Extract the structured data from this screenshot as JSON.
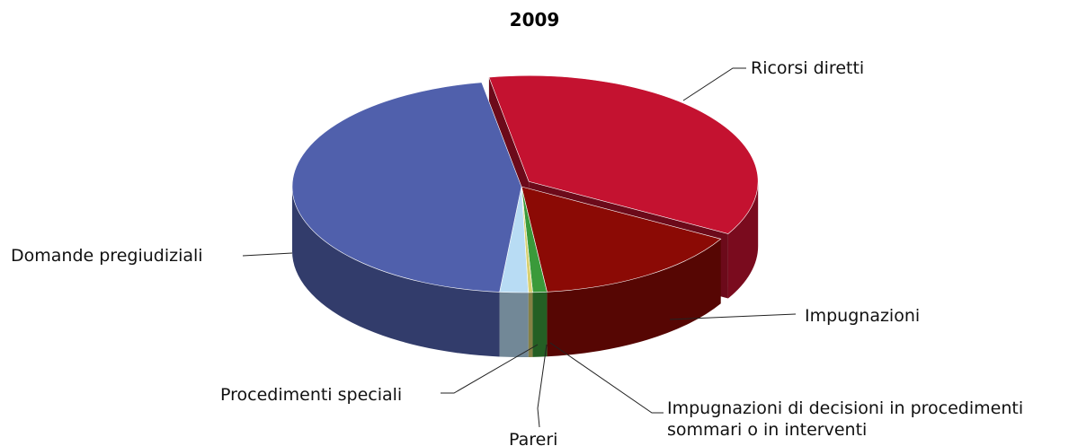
{
  "chart_data": {
    "type": "pie",
    "title": "2009",
    "categories": [
      "Ricorsi diretti",
      "Impugnazioni",
      "Impugnazioni di decisioni in procedimenti sommari o in interventi",
      "Pareri",
      "Procedimenti speciali",
      "Domande pregiudiziali"
    ],
    "values": [
      36,
      15,
      1,
      0.3,
      2,
      45.7
    ],
    "colors": [
      "#c41230",
      "#8b0a05",
      "#3a9a3a",
      "#d8d070",
      "#b8dcf4",
      "#5060ac"
    ]
  }
}
